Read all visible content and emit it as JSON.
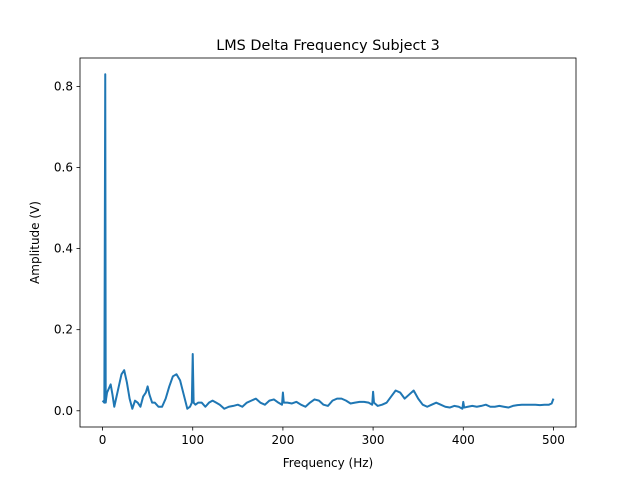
{
  "chart_data": {
    "type": "line",
    "title": "LMS Delta Frequency Subject 3",
    "xlabel": "Frequency (Hz)",
    "ylabel": "Amplitude (V)",
    "xlim": [
      -25,
      525
    ],
    "ylim": [
      -0.04,
      0.87
    ],
    "xticks": [
      0,
      100,
      200,
      300,
      400,
      500
    ],
    "yticks": [
      0.0,
      0.2,
      0.4,
      0.6,
      0.8
    ],
    "ytick_labels": [
      "0.0",
      "0.2",
      "0.4",
      "0.6",
      "0.8"
    ],
    "grid": false,
    "line_color": "#1f77b4",
    "series": [
      {
        "x": [
          0,
          2,
          3,
          3.5,
          4,
          5,
          7,
          9,
          11,
          13,
          15,
          18,
          21,
          24,
          27,
          30,
          33,
          36,
          39,
          42,
          45,
          48,
          50,
          52,
          55,
          58,
          62,
          66,
          70,
          74,
          78,
          82,
          86,
          90,
          94,
          97,
          99,
          100,
          101,
          103,
          106,
          110,
          114,
          118,
          122,
          126,
          130,
          135,
          140,
          145,
          150,
          155,
          160,
          165,
          170,
          175,
          180,
          185,
          190,
          195,
          199,
          200,
          201,
          205,
          210,
          215,
          220,
          225,
          230,
          235,
          240,
          245,
          250,
          255,
          260,
          265,
          270,
          275,
          280,
          285,
          290,
          295,
          299,
          300,
          301,
          305,
          310,
          315,
          320,
          325,
          330,
          335,
          340,
          345,
          350,
          355,
          360,
          365,
          370,
          375,
          380,
          385,
          390,
          395,
          399,
          400,
          401,
          405,
          410,
          415,
          420,
          425,
          430,
          435,
          440,
          445,
          450,
          455,
          460,
          465,
          470,
          475,
          480,
          485,
          490,
          495,
          498,
          500
        ],
        "y": [
          0.025,
          0.02,
          0.83,
          0.02,
          0.03,
          0.045,
          0.055,
          0.065,
          0.04,
          0.01,
          0.03,
          0.06,
          0.09,
          0.1,
          0.07,
          0.03,
          0.005,
          0.025,
          0.02,
          0.01,
          0.035,
          0.045,
          0.06,
          0.04,
          0.02,
          0.02,
          0.01,
          0.01,
          0.03,
          0.06,
          0.085,
          0.09,
          0.075,
          0.04,
          0.005,
          0.01,
          0.02,
          0.14,
          0.02,
          0.015,
          0.02,
          0.02,
          0.01,
          0.02,
          0.025,
          0.02,
          0.015,
          0.005,
          0.01,
          0.012,
          0.015,
          0.01,
          0.02,
          0.025,
          0.03,
          0.02,
          0.015,
          0.025,
          0.028,
          0.02,
          0.015,
          0.045,
          0.02,
          0.02,
          0.018,
          0.022,
          0.015,
          0.01,
          0.02,
          0.028,
          0.025,
          0.015,
          0.012,
          0.025,
          0.03,
          0.03,
          0.025,
          0.018,
          0.02,
          0.022,
          0.022,
          0.02,
          0.015,
          0.047,
          0.02,
          0.012,
          0.015,
          0.02,
          0.035,
          0.05,
          0.045,
          0.03,
          0.04,
          0.05,
          0.03,
          0.015,
          0.01,
          0.015,
          0.02,
          0.015,
          0.01,
          0.008,
          0.012,
          0.01,
          0.005,
          0.022,
          0.008,
          0.01,
          0.012,
          0.01,
          0.012,
          0.015,
          0.01,
          0.01,
          0.012,
          0.01,
          0.008,
          0.012,
          0.014,
          0.015,
          0.015,
          0.015,
          0.015,
          0.014,
          0.015,
          0.015,
          0.018,
          0.03
        ]
      }
    ]
  }
}
